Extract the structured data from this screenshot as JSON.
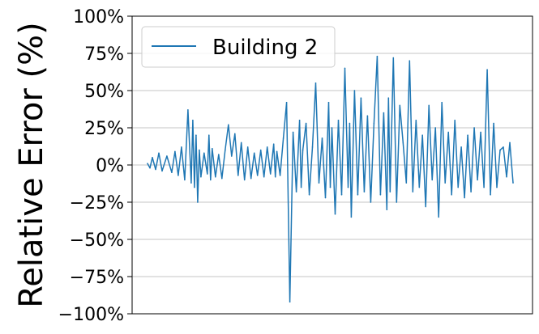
{
  "chart_data": {
    "type": "line",
    "ylabel": "Relative Error (%)",
    "xlabel": "",
    "ylim": [
      -100,
      100
    ],
    "yticks": [
      -100,
      -75,
      -50,
      -25,
      0,
      25,
      50,
      75,
      100
    ],
    "ytick_labels": [
      "−100%",
      "−75%",
      "−50%",
      "−25%",
      "0%",
      "25%",
      "50%",
      "75%",
      "100%"
    ],
    "grid": "horizontal",
    "legend_position": "top-left",
    "series": [
      {
        "name": "Building 2",
        "color": "#1f77b4",
        "x": [
          0,
          3,
          6,
          10,
          14,
          18,
          24,
          30,
          34,
          38,
          42,
          46,
          50,
          54,
          56,
          58,
          60,
          62,
          64,
          66,
          70,
          74,
          76,
          78,
          80,
          84,
          88,
          92,
          96,
          100,
          104,
          108,
          112,
          116,
          120,
          124,
          128,
          132,
          136,
          140,
          144,
          148,
          152,
          156,
          158,
          160,
          164,
          168,
          172,
          176,
          180,
          184,
          188,
          190,
          192,
          196,
          200,
          204,
          208,
          212,
          216,
          220,
          224,
          226,
          228,
          232,
          236,
          240,
          244,
          248,
          250,
          252,
          256,
          260,
          264,
          268,
          272,
          276,
          280,
          284,
          288,
          292,
          296,
          298,
          300,
          304,
          308,
          312,
          316,
          320,
          324,
          328,
          332,
          336,
          340,
          344,
          348,
          352,
          356,
          360,
          364,
          368,
          372,
          376,
          380,
          384,
          388,
          392,
          396,
          400,
          404,
          408,
          412,
          416,
          420,
          424,
          428,
          432,
          436,
          440,
          444,
          448,
          452
        ],
        "y": [
          1,
          -2,
          5,
          -3,
          8,
          -4,
          6,
          -5,
          9,
          -7,
          12,
          -10,
          37,
          -12,
          30,
          -15,
          20,
          -25,
          10,
          -8,
          8,
          -6,
          20,
          -10,
          11,
          -8,
          7,
          -9,
          10,
          27,
          6,
          21,
          -7,
          15,
          -10,
          12,
          -9,
          8,
          -7,
          10,
          -8,
          12,
          -6,
          14,
          -8,
          9,
          -7,
          18,
          42,
          -92,
          22,
          -18,
          30,
          -15,
          10,
          28,
          -20,
          12,
          55,
          -12,
          18,
          -22,
          42,
          -15,
          25,
          -33,
          30,
          -20,
          65,
          -15,
          28,
          -35,
          50,
          -20,
          45,
          -18,
          33,
          -25,
          28,
          73,
          -20,
          35,
          -30,
          45,
          -18,
          72,
          -25,
          40,
          15,
          -12,
          70,
          -18,
          30,
          -15,
          20,
          -28,
          40,
          -10,
          25,
          -35,
          42,
          -12,
          22,
          -20,
          30,
          -15,
          12,
          -22,
          20,
          -18,
          25,
          -10,
          22,
          -15,
          64,
          -20,
          28,
          -15,
          10,
          12,
          -8,
          15,
          -12
        ]
      }
    ]
  }
}
